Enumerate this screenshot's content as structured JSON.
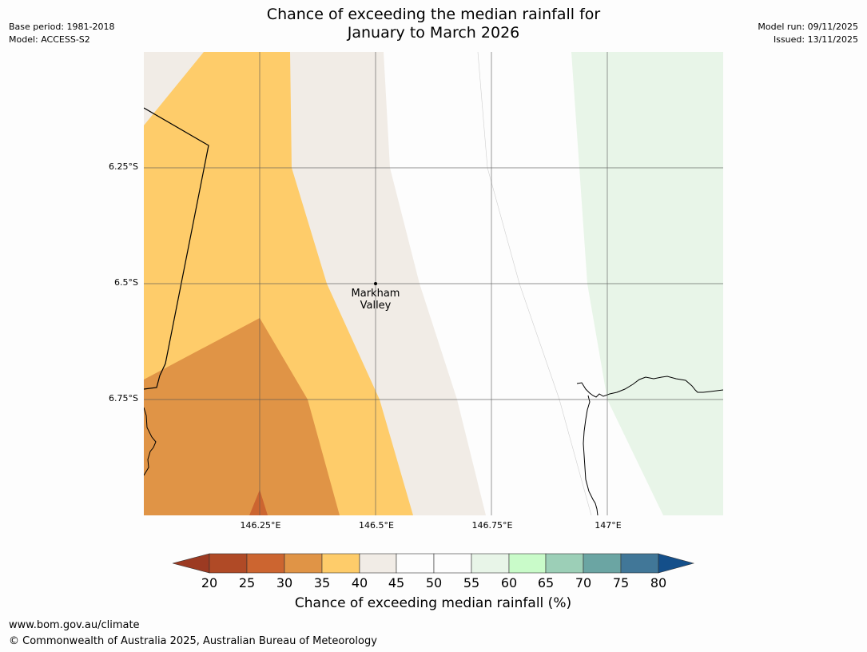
{
  "header": {
    "base_period": "Base period: 1981-2018",
    "model": "Model: ACCESS-S2",
    "title_line1": "Chance of exceeding the median rainfall for",
    "title_line2": "January to March 2026",
    "model_run": "Model run: 09/11/2025",
    "issued": "Issued: 13/11/2025"
  },
  "map": {
    "lat_labels": [
      "6.25°S",
      "6.5°S",
      "6.75°S"
    ],
    "lon_labels": [
      "146.25°E",
      "146.5°E",
      "146.75°E",
      "147°E"
    ],
    "place": {
      "line1": "Markham",
      "line2": "Valley"
    }
  },
  "legend": {
    "ticks": [
      "20",
      "25",
      "30",
      "35",
      "40",
      "45",
      "50",
      "55",
      "60",
      "65",
      "70",
      "75",
      "80"
    ],
    "colors": {
      "below_20": "#9c3a22",
      "20_25": "#b04a26",
      "25_30": "#cc6530",
      "30_35": "#e09446",
      "35_40": "#fecc6a",
      "40_45": "#f1ece6",
      "45_50": "#fdfdfd",
      "50_55": "#fdfdfd",
      "55_60": "#e8f5e8",
      "60_65": "#c9fbc9",
      "65_70": "#9ccfb7",
      "70_75": "#6ba5a3",
      "75_80": "#417798",
      "above_80": "#144f8a"
    },
    "label": "Chance of exceeding median rainfall (%)"
  },
  "footer": {
    "url": "www.bom.gov.au/climate",
    "copyright": "© Commonwealth of Australia 2025, Australian Bureau of Meteorology"
  }
}
